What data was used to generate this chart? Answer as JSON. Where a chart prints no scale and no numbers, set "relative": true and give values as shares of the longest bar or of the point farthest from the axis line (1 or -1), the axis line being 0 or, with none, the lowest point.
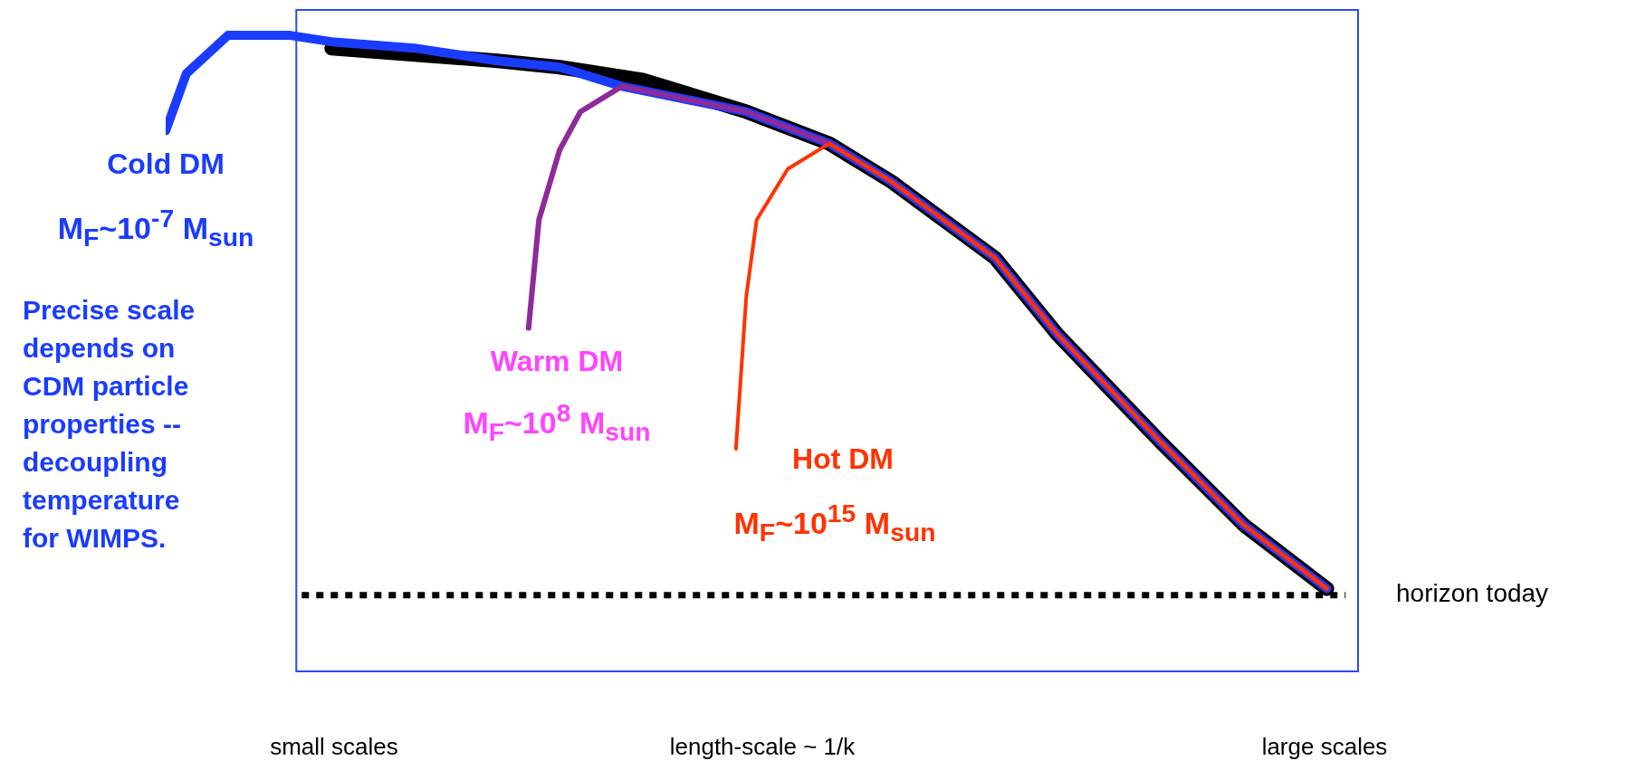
{
  "chart_data": {
    "type": "line",
    "relative": true,
    "xlabel": "length-scale ~ 1/k",
    "categories": [
      null,
      null,
      null,
      null,
      null,
      null,
      null,
      null,
      null,
      null,
      null,
      null,
      null,
      null,
      null,
      null,
      null,
      null,
      null,
      null,
      null,
      null,
      null,
      null,
      null,
      null,
      null,
      null,
      null,
      null,
      null,
      null,
      null,
      null,
      null,
      null,
      null,
      null,
      null,
      null,
      null,
      null,
      null,
      null,
      null,
      null,
      null,
      null,
      null,
      null,
      null,
      null,
      null,
      null,
      null,
      null,
      null,
      null,
      null,
      null,
      null,
      null,
      null,
      null,
      null,
      null,
      null,
      null,
      null,
      null,
      null,
      null,
      null,
      null,
      null,
      null,
      null,
      null,
      null,
      null,
      null,
      null,
      null,
      null,
      null,
      null,
      null,
      null,
      null,
      null,
      null,
      null,
      null,
      null,
      null,
      null,
      null,
      null,
      null,
      null,
      null,
      null,
      null,
      null,
      null,
      null,
      null,
      null,
      null,
      null,
      null,
      null,
      null
    ],
    "series": [
      {
        "color": "#000000",
        "values": [
          null,
          null,
          null,
          null,
          null,
          null,
          null,
          null,
          null,
          null,
          null,
          null,
          null,
          null,
          null,
          null,
          0.98,
          null,
          null,
          null,
          null,
          null,
          null,
          null,
          0.97,
          null,
          null,
          null,
          null,
          null,
          null,
          null,
          0.96,
          null,
          null,
          null,
          null,
          null,
          0.95,
          null,
          null,
          null,
          null,
          null,
          null,
          null,
          0.93,
          null,
          null,
          null,
          null,
          null,
          null,
          null,
          null,
          null,
          0.88,
          null,
          null,
          null,
          null,
          null,
          null,
          null,
          0.83,
          null,
          null,
          null,
          null,
          null,
          0.77,
          null,
          null,
          null,
          null,
          null,
          null,
          null,
          null,
          null,
          0.65,
          null,
          null,
          null,
          null,
          null,
          0.53,
          null,
          null,
          null,
          null,
          null,
          null,
          null,
          null,
          null,
          0.36,
          null,
          null,
          null,
          null,
          null,
          null,
          null,
          0.23,
          null,
          null,
          null,
          null,
          null,
          null,
          null,
          0.13
        ]
      },
      {
        "name": "Cold DM",
        "color": "#1a3cff",
        "values": [
          0.85,
          null,
          0.94,
          null,
          null,
          null,
          1,
          null,
          null,
          null,
          null,
          null,
          1,
          null,
          null,
          null,
          0.99,
          null,
          null,
          null,
          null,
          null,
          null,
          null,
          0.98,
          null,
          null,
          null,
          null,
          null,
          null,
          null,
          0.96,
          null,
          null,
          null,
          null,
          null,
          0.95,
          null,
          null,
          null,
          null,
          null,
          0.92,
          null,
          null,
          null,
          null,
          null,
          null,
          null,
          null,
          null,
          null,
          null,
          0.88,
          null,
          null,
          null,
          null,
          null,
          null,
          null,
          0.83,
          null,
          null,
          null,
          null,
          null,
          0.77,
          null,
          null,
          null,
          null,
          null,
          null,
          null,
          null,
          null,
          0.65,
          null,
          null,
          null,
          null,
          null,
          0.53,
          null,
          null,
          null,
          null,
          null,
          null,
          null,
          null,
          null,
          0.36,
          null,
          null,
          null,
          null,
          null,
          null,
          null,
          0.23,
          null,
          null,
          null,
          null,
          null,
          null,
          null,
          0.13
        ]
      },
      {
        "name": "Warm DM",
        "color": "#8e2a9a",
        "values": [
          null,
          null,
          null,
          null,
          null,
          null,
          null,
          null,
          null,
          null,
          null,
          null,
          null,
          null,
          null,
          null,
          null,
          null,
          null,
          null,
          null,
          null,
          null,
          null,
          null,
          null,
          null,
          null,
          null,
          null,
          null,
          null,
          null,
          null,
          null,
          0.54,
          0.71,
          null,
          0.82,
          null,
          0.88,
          null,
          null,
          null,
          0.92,
          null,
          null,
          null,
          null,
          null,
          null,
          null,
          null,
          null,
          null,
          null,
          0.88,
          null,
          null,
          null,
          null,
          null,
          null,
          null,
          0.83,
          null,
          null,
          null,
          null,
          null,
          0.77,
          null,
          null,
          null,
          null,
          null,
          null,
          null,
          null,
          null,
          0.65,
          null,
          null,
          null,
          null,
          null,
          0.53,
          null,
          null,
          null,
          null,
          null,
          null,
          null,
          null,
          null,
          0.36,
          null,
          null,
          null,
          null,
          null,
          null,
          null,
          0.23,
          null,
          null,
          null,
          null,
          null,
          null,
          null,
          0.13
        ]
      },
      {
        "name": "Hot DM",
        "color": "#ff3300",
        "values": [
          null,
          null,
          null,
          null,
          null,
          null,
          null,
          null,
          null,
          null,
          null,
          null,
          null,
          null,
          null,
          null,
          null,
          null,
          null,
          null,
          null,
          null,
          null,
          null,
          null,
          null,
          null,
          null,
          null,
          null,
          null,
          null,
          null,
          null,
          null,
          null,
          null,
          null,
          null,
          null,
          null,
          null,
          null,
          null,
          null,
          null,
          null,
          null,
          null,
          null,
          null,
          null,
          null,
          null,
          null,
          0.35,
          0.59,
          0.71,
          null,
          null,
          0.79,
          null,
          null,
          null,
          0.83,
          null,
          null,
          null,
          null,
          null,
          0.77,
          null,
          null,
          null,
          null,
          null,
          null,
          null,
          null,
          null,
          0.65,
          null,
          null,
          null,
          null,
          null,
          0.53,
          null,
          null,
          null,
          null,
          null,
          null,
          null,
          null,
          null,
          0.36,
          null,
          null,
          null,
          null,
          null,
          null,
          null,
          0.23,
          null,
          null,
          null,
          null,
          null,
          null,
          null,
          0.13
        ]
      }
    ],
    "ref_lines": [
      {
        "axis": "y",
        "value": 0.12,
        "label": "horizon today",
        "color": "#000000",
        "line_style": "dotted"
      }
    ],
    "annotations": [
      "M$_{F}$~10$^{-7}$ M$_{sun}$",
      "Precise scale\ndepends on\nCDM particle\nproperties --\ndecoupling\ntemperature\nfor WIMPS.",
      "M$_{F}$~10$^{8}$ M$_{sun}$",
      "M$_{F}$~10$^{15}$ M$_{sun}$",
      "small scales",
      "large scales"
    ]
  }
}
